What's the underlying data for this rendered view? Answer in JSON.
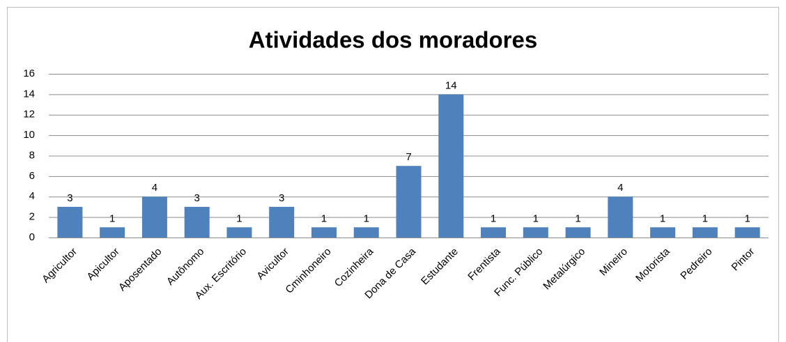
{
  "chart_data": {
    "type": "bar",
    "title": "Atividades dos moradores",
    "categories": [
      "Agricultor",
      "Apicultor",
      "Aposentado",
      "Autônomo",
      "Aux. Escritório",
      "Avicultor",
      "Cminhoneiro",
      "Cozinheira",
      "Dona de Casa",
      "Estudante",
      "Frentista",
      "Func. Público",
      "Metalúrgico",
      "Mineiro",
      "Motorista",
      "Pedreiro",
      "Pintor"
    ],
    "values": [
      3,
      1,
      4,
      3,
      1,
      3,
      1,
      1,
      7,
      14,
      1,
      1,
      1,
      4,
      1,
      1,
      1
    ],
    "color": "#4f81bd",
    "ylim": [
      0,
      16
    ],
    "yticks": [
      0,
      2,
      4,
      6,
      8,
      10,
      12,
      14,
      16
    ],
    "grid": true
  }
}
